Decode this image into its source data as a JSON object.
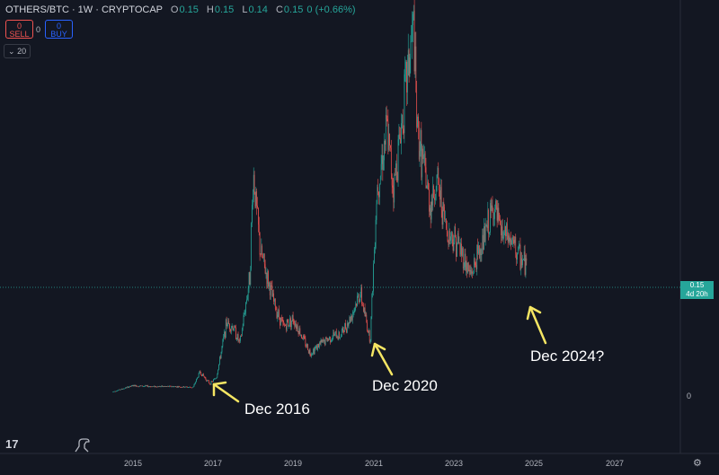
{
  "header": {
    "symbol": "OTHERS/BTC · 1W · CRYPTOCAP",
    "open_label": "O",
    "open": "0.15",
    "high_label": "H",
    "high": "0.15",
    "low_label": "L",
    "low": "0.14",
    "close_label": "C",
    "close": "0.15",
    "change": "0 (+0.66%)"
  },
  "trade": {
    "sell_price": "0",
    "sell_label": "SELL",
    "spread": "0",
    "buy_price": "0",
    "buy_label": "BUY"
  },
  "indicator_toggle": "20",
  "price_axis": {
    "current_price": "0.15",
    "countdown": "4d 20h",
    "zero_label": "0"
  },
  "time_axis": [
    "2015",
    "2017",
    "2019",
    "2021",
    "2023",
    "2025",
    "2027"
  ],
  "annotations": [
    "Dec 2016",
    "Dec 2020",
    "Dec 2024?"
  ],
  "colors": {
    "background": "#131722",
    "up": "#26a69a",
    "down": "#ef5350",
    "arrow": "#f5e663",
    "text": "#ffffff"
  },
  "icons": {
    "logo": "tradingview-logo-icon",
    "settings": "gear-icon",
    "dino": "dino-icon"
  },
  "chart_data": {
    "type": "line",
    "title": "OTHERS/BTC · 1W · CRYPTOCAP",
    "xlabel": "",
    "ylabel": "",
    "x": [
      "2014-07",
      "2015-01",
      "2015-07",
      "2016-01",
      "2016-07",
      "2016-09",
      "2016-12",
      "2017-02",
      "2017-05",
      "2017-07",
      "2017-09",
      "2017-12",
      "2018-01",
      "2018-03",
      "2018-07",
      "2018-10",
      "2019-01",
      "2019-06",
      "2019-09",
      "2020-01",
      "2020-03",
      "2020-06",
      "2020-09",
      "2020-12",
      "2021-02",
      "2021-05",
      "2021-07",
      "2021-11",
      "2022-01",
      "2022-02",
      "2022-06",
      "2022-08",
      "2022-11",
      "2023-02",
      "2023-06",
      "2023-09",
      "2024-01",
      "2024-03",
      "2024-06",
      "2024-09",
      "2024-11"
    ],
    "values": [
      0.005,
      0.012,
      0.011,
      0.011,
      0.01,
      0.028,
      0.014,
      0.022,
      0.085,
      0.08,
      0.06,
      0.14,
      0.26,
      0.17,
      0.11,
      0.08,
      0.09,
      0.05,
      0.06,
      0.07,
      0.07,
      0.09,
      0.12,
      0.065,
      0.24,
      0.31,
      0.24,
      0.37,
      0.43,
      0.31,
      0.22,
      0.25,
      0.19,
      0.18,
      0.14,
      0.17,
      0.22,
      0.19,
      0.18,
      0.16,
      0.15
    ],
    "current_price": 0.15,
    "ylim": [
      0,
      0.43
    ],
    "x_ticks": [
      "2015",
      "2017",
      "2019",
      "2021",
      "2023",
      "2025",
      "2027"
    ],
    "grid": false
  }
}
